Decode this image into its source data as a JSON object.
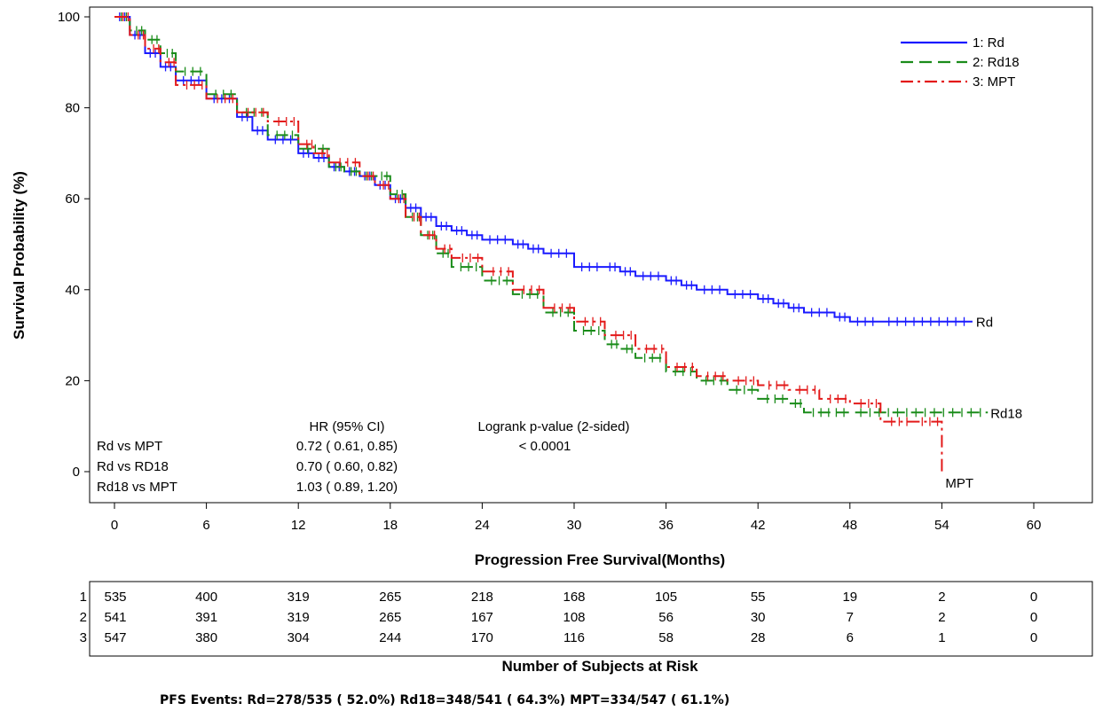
{
  "chart_data": {
    "type": "line",
    "title": "",
    "xlabel": "Progression Free Survival(Months)",
    "ylabel": "Survival Probability (%)",
    "xlim": [
      -2,
      64
    ],
    "ylim": [
      -5,
      101
    ],
    "xticks": [
      "0",
      "6",
      "12",
      "18",
      "24",
      "30",
      "36",
      "42",
      "48",
      "54",
      "60"
    ],
    "yticks": [
      "0",
      "20",
      "40",
      "60",
      "80",
      "100"
    ],
    "legend_position": "top-right",
    "series": [
      {
        "name": "1: Rd",
        "end_label": "Rd",
        "color": "#1a1aff",
        "dash": "solid",
        "points": [
          [
            0,
            100
          ],
          [
            1,
            96
          ],
          [
            2,
            92
          ],
          [
            3,
            89
          ],
          [
            4,
            86
          ],
          [
            6,
            82
          ],
          [
            8,
            78
          ],
          [
            9,
            75
          ],
          [
            10,
            73
          ],
          [
            12,
            70
          ],
          [
            13,
            69
          ],
          [
            14,
            67
          ],
          [
            15,
            66
          ],
          [
            16,
            65
          ],
          [
            17,
            63
          ],
          [
            18,
            60
          ],
          [
            19,
            58
          ],
          [
            20,
            56
          ],
          [
            21,
            54
          ],
          [
            22,
            53
          ],
          [
            23,
            52
          ],
          [
            24,
            51
          ],
          [
            26,
            50
          ],
          [
            27,
            49
          ],
          [
            28,
            48
          ],
          [
            30,
            45
          ],
          [
            32,
            45
          ],
          [
            33,
            44
          ],
          [
            34,
            43
          ],
          [
            36,
            42
          ],
          [
            37,
            41
          ],
          [
            38,
            40
          ],
          [
            40,
            39
          ],
          [
            42,
            38
          ],
          [
            43,
            37
          ],
          [
            44,
            36
          ],
          [
            45,
            35
          ],
          [
            47,
            34
          ],
          [
            48,
            33
          ],
          [
            50,
            33
          ],
          [
            56,
            33
          ]
        ]
      },
      {
        "name": "2: Rd18",
        "end_label": "Rd18",
        "color": "#1a8c1a",
        "dash": "dashed",
        "points": [
          [
            0,
            100
          ],
          [
            1,
            97
          ],
          [
            2,
            95
          ],
          [
            3,
            92
          ],
          [
            4,
            88
          ],
          [
            6,
            83
          ],
          [
            8,
            79
          ],
          [
            10,
            74
          ],
          [
            12,
            71
          ],
          [
            14,
            67
          ],
          [
            15,
            66
          ],
          [
            16,
            65
          ],
          [
            17,
            65
          ],
          [
            18,
            61
          ],
          [
            19,
            56
          ],
          [
            20,
            52
          ],
          [
            21,
            48
          ],
          [
            22,
            45
          ],
          [
            24,
            42
          ],
          [
            26,
            39
          ],
          [
            28,
            35
          ],
          [
            30,
            31
          ],
          [
            32,
            28
          ],
          [
            33,
            27
          ],
          [
            34,
            25
          ],
          [
            36,
            22
          ],
          [
            38,
            20
          ],
          [
            40,
            18
          ],
          [
            42,
            16
          ],
          [
            44,
            15
          ],
          [
            45,
            13
          ],
          [
            48,
            13
          ],
          [
            57,
            13
          ]
        ]
      },
      {
        "name": "3: MPT",
        "end_label": "MPT",
        "color": "#e31a1a",
        "dash": "dashdot",
        "points": [
          [
            0,
            100
          ],
          [
            1,
            96
          ],
          [
            2,
            93
          ],
          [
            3,
            90
          ],
          [
            4,
            85
          ],
          [
            6,
            82
          ],
          [
            8,
            79
          ],
          [
            10,
            77
          ],
          [
            12,
            72
          ],
          [
            13,
            70
          ],
          [
            14,
            68
          ],
          [
            16,
            65
          ],
          [
            17,
            63
          ],
          [
            18,
            60
          ],
          [
            19,
            56
          ],
          [
            20,
            52
          ],
          [
            21,
            49
          ],
          [
            22,
            47
          ],
          [
            24,
            44
          ],
          [
            26,
            40
          ],
          [
            28,
            36
          ],
          [
            30,
            33
          ],
          [
            32,
            30
          ],
          [
            34,
            27
          ],
          [
            36,
            23
          ],
          [
            38,
            21
          ],
          [
            40,
            20
          ],
          [
            42,
            19
          ],
          [
            44,
            18
          ],
          [
            46,
            16
          ],
          [
            48,
            15
          ],
          [
            50,
            11
          ],
          [
            52,
            11
          ],
          [
            54,
            11
          ],
          [
            54,
            0
          ]
        ]
      }
    ],
    "stats_table": {
      "hr_header": "HR (95% CI)",
      "p_header": "Logrank p-value (2-sided)",
      "rows": [
        {
          "label": "Rd vs MPT",
          "hr": "0.72 ( 0.61,  0.85)",
          "p": "< 0.0001"
        },
        {
          "label": "Rd vs RD18",
          "hr": "0.70 ( 0.60,  0.82)",
          "p": ""
        },
        {
          "label": "Rd18 vs MPT",
          "hr": "1.03 ( 0.89,  1.20)",
          "p": ""
        }
      ]
    },
    "risk_table": {
      "title": "Number of Subjects at Risk",
      "rows": [
        {
          "id": "1",
          "values": [
            "535",
            "400",
            "319",
            "265",
            "218",
            "168",
            "105",
            "55",
            "19",
            "2",
            "0"
          ]
        },
        {
          "id": "2",
          "values": [
            "541",
            "391",
            "319",
            "265",
            "167",
            "108",
            "56",
            "30",
            "7",
            "2",
            "0"
          ]
        },
        {
          "id": "3",
          "values": [
            "547",
            "380",
            "304",
            "244",
            "170",
            "116",
            "58",
            "28",
            "6",
            "1",
            "0"
          ]
        }
      ]
    },
    "footnote": "PFS Events: Rd=278/535 ( 52.0%) Rd18=348/541 ( 64.3%) MPT=334/547 ( 61.1%)"
  }
}
